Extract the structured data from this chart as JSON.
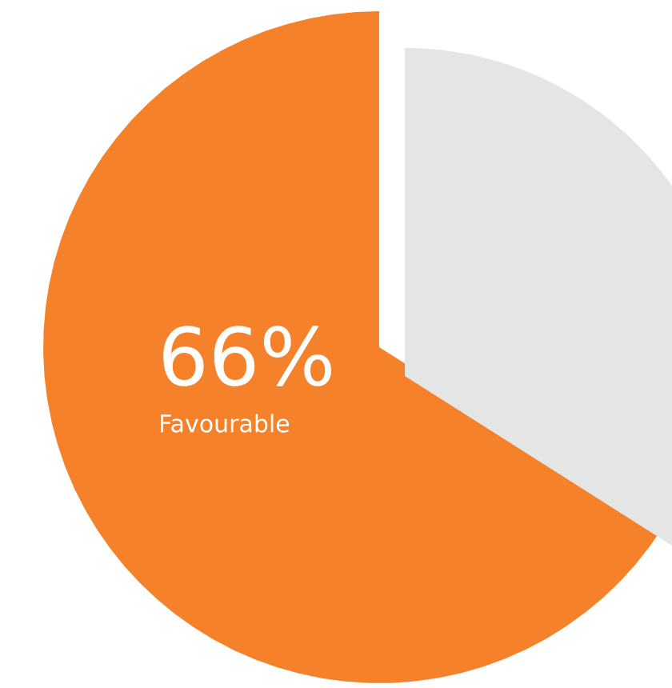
{
  "chart_data": {
    "type": "pie",
    "categories": [
      "Favourable",
      null
    ],
    "values": [
      66,
      34
    ],
    "colors": [
      "#f5822a",
      "#e4e5e5"
    ],
    "value_labels": [
      "66%",
      null
    ]
  }
}
